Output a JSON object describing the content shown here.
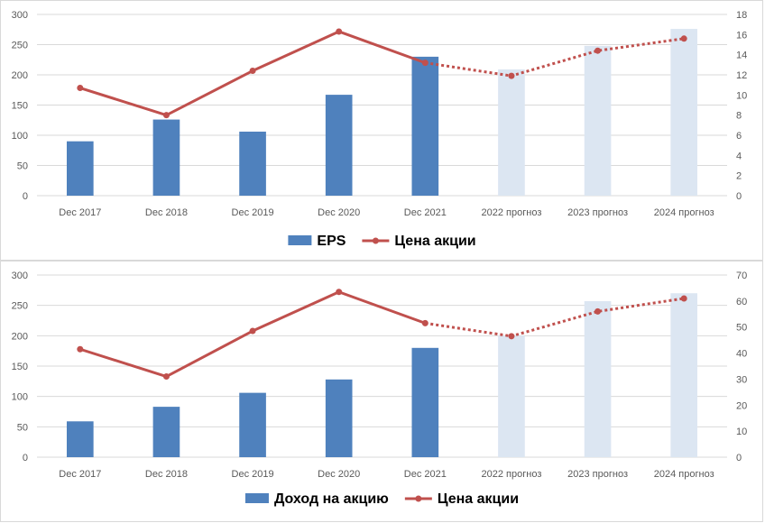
{
  "chart_data": [
    {
      "type": "bar+line",
      "categories": [
        "Dec 2017",
        "Dec 2018",
        "Dec 2019",
        "Dec 2020",
        "Dec 2021",
        "2022 прогноз",
        "2023 прогноз",
        "2024 прогноз"
      ],
      "series": [
        {
          "name": "EPS",
          "type": "bar",
          "axis": "left",
          "color": "#4f81bd",
          "forecast_color": "#dce6f2",
          "forecast_from_index": 5,
          "values": [
            90,
            126,
            106,
            167,
            230,
            209,
            248,
            276
          ]
        },
        {
          "name": "Цена акции",
          "type": "line",
          "axis": "right",
          "color": "#c0504d",
          "forecast_style": "dotted",
          "forecast_from_index": 4,
          "values": [
            10.7,
            8.0,
            12.4,
            16.3,
            13.2,
            11.9,
            14.4,
            15.6
          ]
        }
      ],
      "y_left": {
        "min": 0,
        "max": 300,
        "step": 50
      },
      "y_right": {
        "min": 0,
        "max": 18,
        "step": 2
      },
      "grid": true,
      "legend_position": "bottom"
    },
    {
      "type": "bar+line",
      "categories": [
        "Dec 2017",
        "Dec 2018",
        "Dec 2019",
        "Dec 2020",
        "Dec 2021",
        "2022 прогноз",
        "2023 прогноз",
        "2024 прогноз"
      ],
      "series": [
        {
          "name": "Доход на акцию",
          "type": "bar",
          "axis": "left",
          "color": "#4f81bd",
          "forecast_color": "#dce6f2",
          "forecast_from_index": 5,
          "values": [
            59,
            83,
            106,
            128,
            180,
            200,
            257,
            270
          ]
        },
        {
          "name": "Цена акции",
          "type": "line",
          "axis": "right",
          "color": "#c0504d",
          "forecast_style": "dotted",
          "forecast_from_index": 4,
          "values": [
            41.5,
            31,
            48.5,
            63.5,
            51.5,
            46.5,
            56,
            61
          ]
        }
      ],
      "y_left": {
        "min": 0,
        "max": 300,
        "step": 50
      },
      "y_right": {
        "min": 0,
        "max": 70,
        "step": 10
      },
      "grid": true,
      "legend_position": "bottom"
    }
  ]
}
